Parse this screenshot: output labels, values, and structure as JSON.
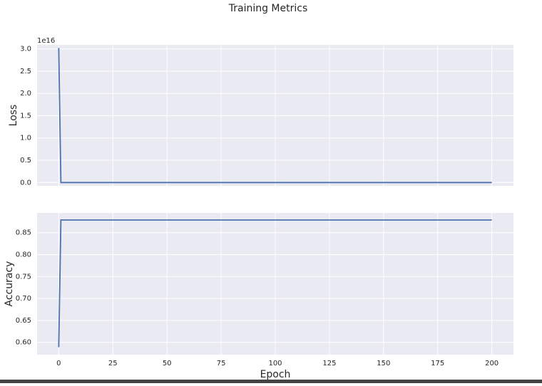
{
  "title": "Training Metrics",
  "chart_data": [
    {
      "type": "line",
      "ylabel": "Loss",
      "offset_label": "1e16",
      "x": [
        0,
        1,
        200
      ],
      "series": [
        {
          "name": "Loss",
          "color": "#4c72b0",
          "values": [
            3.02e+16,
            0,
            0
          ]
        }
      ],
      "xlim": [
        -10,
        210
      ],
      "ylim": [
        -750000000000000.0,
        3.09e+16
      ],
      "yticks": [
        {
          "value": 0,
          "label": "0.0"
        },
        {
          "value": 5000000000000000.0,
          "label": "0.5"
        },
        {
          "value": 1e+16,
          "label": "1.0"
        },
        {
          "value": 1.5e+16,
          "label": "1.5"
        },
        {
          "value": 2e+16,
          "label": "2.0"
        },
        {
          "value": 2.5e+16,
          "label": "2.5"
        },
        {
          "value": 3e+16,
          "label": "3.0"
        }
      ],
      "grid": true
    },
    {
      "type": "line",
      "ylabel": "Accuracy",
      "xlabel": "Epoch",
      "x": [
        0,
        1,
        200
      ],
      "series": [
        {
          "name": "Accuracy",
          "color": "#4c72b0",
          "values": [
            0.589,
            0.879,
            0.879
          ]
        }
      ],
      "xlim": [
        -10,
        210
      ],
      "xticks": [
        0,
        25,
        50,
        75,
        100,
        125,
        150,
        175,
        200
      ],
      "ylim": [
        0.572,
        0.895
      ],
      "yticks": [
        {
          "value": 0.6,
          "label": "0.60"
        },
        {
          "value": 0.65,
          "label": "0.65"
        },
        {
          "value": 0.7,
          "label": "0.70"
        },
        {
          "value": 0.75,
          "label": "0.75"
        },
        {
          "value": 0.8,
          "label": "0.80"
        },
        {
          "value": 0.85,
          "label": "0.85"
        }
      ],
      "grid": true
    }
  ]
}
